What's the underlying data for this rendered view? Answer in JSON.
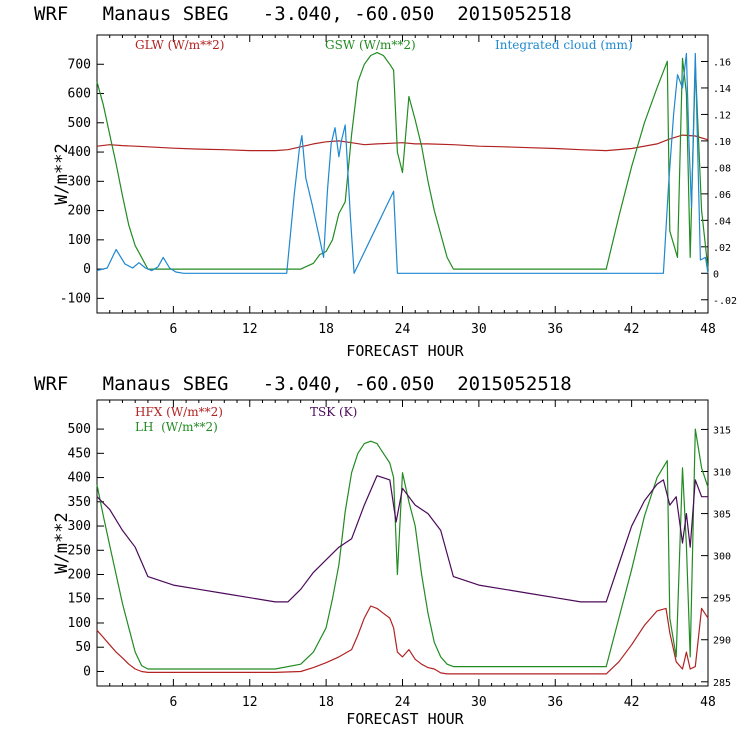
{
  "chart_data": [
    {
      "type": "line",
      "title": "WRF   Manaus SBEG   -3.040, -60.050  2015052518",
      "xlabel": "FORECAST HOUR",
      "ylabel": "W/m**2",
      "xlim": [
        0,
        48
      ],
      "ylim": [
        -150,
        800
      ],
      "y2lim": [
        -0.03,
        0.18
      ],
      "x_ticks": [
        6,
        12,
        18,
        24,
        30,
        36,
        42,
        48
      ],
      "y_ticks": [
        -100,
        0,
        100,
        200,
        300,
        400,
        500,
        600,
        700
      ],
      "y_tick_labels": [
        "-100",
        "0",
        "100",
        "200",
        "300",
        "400",
        "500",
        "600",
        "700"
      ],
      "y2_ticks": [
        -0.02,
        0,
        0.02,
        0.04,
        0.06,
        0.08,
        0.1,
        0.12,
        0.14,
        0.16
      ],
      "y2_tick_labels": [
        "-.02",
        "0",
        ".02",
        ".04",
        ".06",
        ".08",
        ".10",
        ".12",
        ".14",
        ".16"
      ],
      "series": [
        {
          "name": "GLW (W/m**2)",
          "axis": "left",
          "color": "#b22222",
          "x": [
            0,
            1,
            2,
            3,
            4,
            6,
            8,
            10,
            12,
            14,
            15,
            16,
            17,
            18,
            19,
            20,
            21,
            22,
            23,
            24,
            25,
            26,
            28,
            30,
            32,
            34,
            36,
            38,
            40,
            42,
            44,
            45,
            46,
            47,
            48
          ],
          "y": [
            420,
            425,
            422,
            420,
            418,
            413,
            410,
            408,
            405,
            405,
            408,
            418,
            428,
            435,
            438,
            432,
            425,
            428,
            430,
            432,
            428,
            428,
            425,
            420,
            418,
            415,
            412,
            408,
            405,
            412,
            428,
            445,
            458,
            455,
            442
          ]
        },
        {
          "name": "GSW (W/m**2)",
          "axis": "left",
          "color": "#228b22",
          "x": [
            0,
            0.5,
            1,
            1.5,
            2,
            2.5,
            3,
            3.5,
            4,
            14,
            16,
            17,
            17.5,
            18,
            18.5,
            19,
            19.5,
            20,
            20.5,
            21,
            21.5,
            22,
            22.5,
            23,
            23.3,
            23.6,
            24,
            24.5,
            25,
            25.5,
            26,
            26.5,
            27,
            27.5,
            28,
            28.2,
            40,
            41,
            42,
            43,
            44,
            44.8,
            45,
            45.6,
            46,
            46.3,
            46.6,
            47,
            47.5,
            48
          ],
          "y": [
            640,
            560,
            460,
            360,
            250,
            150,
            80,
            40,
            0,
            0,
            0,
            20,
            50,
            60,
            100,
            190,
            230,
            460,
            640,
            700,
            730,
            740,
            730,
            700,
            680,
            400,
            330,
            590,
            510,
            420,
            300,
            200,
            120,
            40,
            0,
            0,
            0,
            180,
            350,
            500,
            620,
            710,
            130,
            40,
            720,
            600,
            40,
            700,
            200,
            0
          ]
        },
        {
          "name": "Integrated cloud (mm)",
          "axis": "right",
          "color": "#1e88d0",
          "x": [
            0,
            0.8,
            1.5,
            2.2,
            2.8,
            3.3,
            3.8,
            4.3,
            4.8,
            5.2,
            5.7,
            6.2,
            6.8,
            7.5,
            14.9,
            15.5,
            15.9,
            16.1,
            16.4,
            16.9,
            17.4,
            17.8,
            18.1,
            18.4,
            18.7,
            19,
            19.2,
            19.5,
            19.9,
            20.2,
            23.3,
            23.6,
            23.9,
            40,
            44.5,
            44.9,
            45.3,
            45.6,
            46,
            46.3,
            46.5,
            46.7,
            47,
            47.4,
            47.8,
            48
          ],
          "y": [
            0.002,
            0.004,
            0.018,
            0.007,
            0.004,
            0.008,
            0.004,
            0.002,
            0.005,
            0.012,
            0.004,
            0.001,
            0.0,
            0.0,
            0.0,
            0.06,
            0.094,
            0.104,
            0.072,
            0.052,
            0.03,
            0.012,
            0.062,
            0.098,
            0.11,
            0.088,
            0.1,
            0.112,
            0.044,
            0.0,
            0.062,
            0.0,
            0.0,
            0.0,
            0.0,
            0.066,
            0.12,
            0.15,
            0.14,
            0.166,
            0.1,
            0.05,
            0.166,
            0.01,
            0.012,
            0.0
          ]
        }
      ]
    },
    {
      "type": "line",
      "title": "WRF   Manaus SBEG   -3.040, -60.050  2015052518",
      "xlabel": "FORECAST HOUR",
      "ylabel": "W/m**2",
      "xlim": [
        0,
        48
      ],
      "ylim": [
        -30,
        560
      ],
      "y2lim": [
        284.5,
        318.5
      ],
      "x_ticks": [
        6,
        12,
        18,
        24,
        30,
        36,
        42,
        48
      ],
      "y_ticks": [
        0,
        50,
        100,
        150,
        200,
        250,
        300,
        350,
        400,
        450,
        500
      ],
      "y_tick_labels": [
        "0",
        "50",
        "100",
        "150",
        "200",
        "250",
        "300",
        "350",
        "400",
        "450",
        "500"
      ],
      "y2_ticks": [
        285,
        290,
        295,
        300,
        305,
        310,
        315
      ],
      "y2_tick_labels": [
        "285",
        "290",
        "295",
        "300",
        "305",
        "310",
        "315"
      ],
      "series": [
        {
          "name": "HFX (W/m**2)",
          "axis": "left",
          "color": "#b22222",
          "x": [
            0,
            0.5,
            1,
            1.5,
            2,
            2.5,
            3,
            3.5,
            4,
            14,
            16,
            17,
            18,
            19,
            20,
            20.5,
            21,
            21.5,
            22,
            22.5,
            23,
            23.3,
            23.6,
            24,
            24.5,
            25,
            25.5,
            26,
            26.5,
            27,
            27.5,
            28,
            40,
            41,
            42,
            43,
            44,
            44.7,
            45,
            45.5,
            46,
            46.3,
            46.6,
            47,
            47.5,
            48
          ],
          "y": [
            85,
            70,
            55,
            40,
            28,
            15,
            5,
            0,
            -2,
            -2,
            0,
            8,
            18,
            30,
            45,
            75,
            110,
            135,
            130,
            120,
            110,
            90,
            40,
            30,
            45,
            25,
            15,
            8,
            5,
            -3,
            -5,
            -5,
            -5,
            20,
            55,
            95,
            125,
            130,
            80,
            20,
            5,
            40,
            5,
            10,
            130,
            110
          ]
        },
        {
          "name": "LH  (W/m**2)",
          "axis": "left",
          "color": "#228b22",
          "x": [
            0,
            0.5,
            1,
            1.5,
            2,
            2.5,
            3,
            3.5,
            4,
            14,
            16,
            17,
            18,
            18.5,
            19,
            19.5,
            20,
            20.5,
            21,
            21.5,
            22,
            22.5,
            23,
            23.3,
            23.6,
            24,
            24.5,
            25,
            25.5,
            26,
            26.5,
            27,
            27.5,
            28,
            40,
            41,
            42,
            43,
            44,
            44.8,
            45,
            45.5,
            46,
            46.3,
            46.6,
            47,
            47.5,
            48
          ],
          "y": [
            385,
            320,
            260,
            200,
            140,
            90,
            40,
            12,
            5,
            5,
            15,
            40,
            90,
            150,
            220,
            330,
            410,
            450,
            470,
            475,
            470,
            450,
            430,
            400,
            200,
            410,
            350,
            300,
            200,
            120,
            60,
            30,
            15,
            10,
            10,
            110,
            210,
            320,
            400,
            435,
            110,
            30,
            420,
            260,
            30,
            500,
            420,
            380
          ]
        },
        {
          "name": "TSK (K)",
          "axis": "right",
          "color": "#4b0a5a",
          "x": [
            0,
            1,
            2,
            3,
            4,
            6,
            8,
            10,
            12,
            14,
            15,
            16,
            17,
            18,
            19,
            20,
            21,
            22,
            23,
            23.5,
            24,
            25,
            26,
            27,
            28,
            30,
            32,
            34,
            36,
            38,
            40,
            41,
            42,
            43,
            44,
            44.5,
            45,
            45.5,
            46,
            46.3,
            46.6,
            47,
            47.5,
            48
          ],
          "y": [
            307,
            305.5,
            303,
            301,
            297.5,
            296.5,
            296,
            295.5,
            295,
            294.5,
            294.5,
            296,
            298,
            299.5,
            301,
            302,
            306,
            309.5,
            309,
            304,
            308,
            306,
            305,
            303,
            297.5,
            296.5,
            296,
            295.5,
            295,
            294.5,
            294.5,
            299,
            303.5,
            306.5,
            308.5,
            309,
            306,
            307,
            301.5,
            305,
            301,
            309,
            307,
            307
          ]
        }
      ]
    }
  ]
}
